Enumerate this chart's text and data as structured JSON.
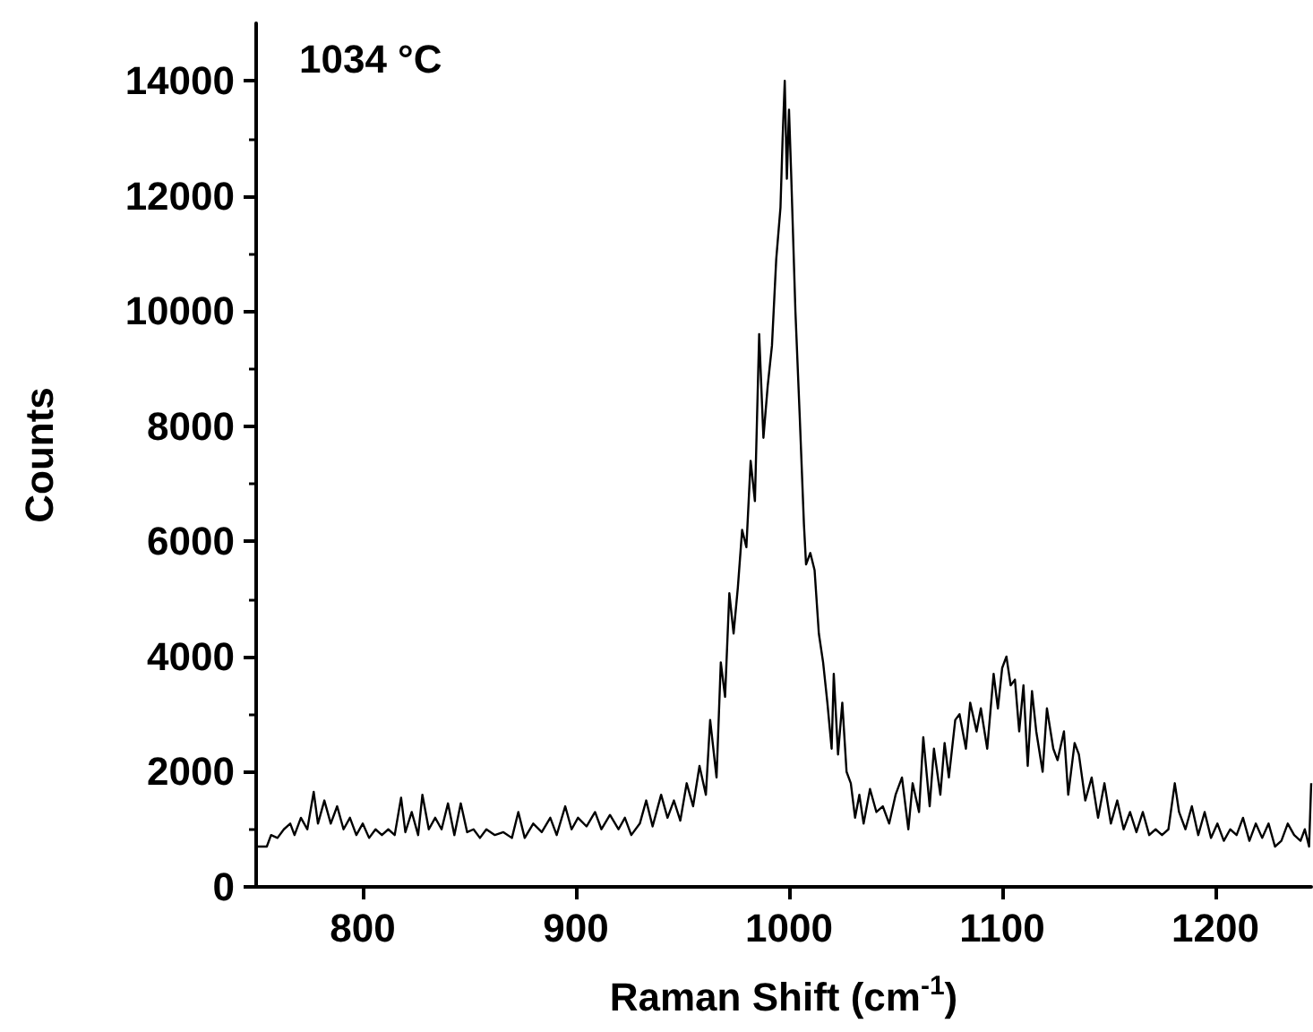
{
  "chart_data": {
    "type": "line",
    "xlabel": "Raman Shift (cm$^{-1}$)",
    "ylabel": "Counts",
    "annotations": [
      "1034 °C"
    ],
    "xlim": [
      750,
      1245
    ],
    "ylim": [
      0,
      15000
    ],
    "xticks": [
      800,
      900,
      1000,
      1100,
      1200
    ],
    "yticks": [
      0,
      2000,
      4000,
      6000,
      8000,
      10000,
      12000,
      14000
    ],
    "grid": false,
    "marker": "none",
    "line_style": "solid",
    "series": [
      {
        "color": "#000000",
        "x": [
          750,
          752,
          755,
          757,
          760,
          763,
          766,
          768,
          771,
          774,
          777,
          779,
          782,
          785,
          788,
          791,
          794,
          797,
          800,
          803,
          806,
          809,
          812,
          815,
          818,
          820,
          823,
          826,
          828,
          831,
          834,
          837,
          840,
          843,
          846,
          849,
          852,
          855,
          858,
          862,
          866,
          870,
          873,
          876,
          880,
          884,
          888,
          891,
          895,
          898,
          901,
          905,
          909,
          912,
          916,
          920,
          923,
          926,
          930,
          933,
          936,
          940,
          943,
          946,
          949,
          952,
          955,
          958,
          961,
          963,
          966,
          968,
          970,
          972,
          974,
          976,
          978,
          980,
          982,
          984,
          986,
          988,
          990,
          992,
          994,
          996,
          997,
          998,
          999,
          1000,
          1001,
          1003,
          1005,
          1007,
          1008,
          1010,
          1012,
          1014,
          1016,
          1018,
          1020,
          1021,
          1023,
          1025,
          1027,
          1029,
          1031,
          1033,
          1035,
          1038,
          1041,
          1044,
          1047,
          1050,
          1053,
          1056,
          1058,
          1061,
          1063,
          1066,
          1068,
          1071,
          1073,
          1075,
          1078,
          1080,
          1083,
          1085,
          1088,
          1090,
          1093,
          1096,
          1098,
          1100,
          1102,
          1104,
          1106,
          1108,
          1110,
          1112,
          1114,
          1116,
          1119,
          1121,
          1124,
          1126,
          1129,
          1131,
          1134,
          1136,
          1139,
          1142,
          1145,
          1148,
          1151,
          1154,
          1157,
          1160,
          1163,
          1166,
          1169,
          1172,
          1175,
          1178,
          1181,
          1183,
          1186,
          1189,
          1192,
          1195,
          1198,
          1201,
          1204,
          1207,
          1210,
          1213,
          1216,
          1219,
          1222,
          1225,
          1228,
          1231,
          1234,
          1237,
          1240,
          1242,
          1244,
          1245
        ],
        "values": [
          700,
          700,
          700,
          900,
          850,
          1000,
          1100,
          900,
          1200,
          1000,
          1650,
          1100,
          1500,
          1100,
          1400,
          1000,
          1200,
          900,
          1100,
          850,
          1000,
          900,
          1000,
          900,
          1550,
          950,
          1300,
          900,
          1600,
          1000,
          1200,
          1000,
          1450,
          900,
          1450,
          950,
          1000,
          850,
          1000,
          900,
          950,
          850,
          1300,
          850,
          1100,
          950,
          1200,
          900,
          1400,
          1000,
          1200,
          1050,
          1300,
          1000,
          1250,
          1000,
          1200,
          900,
          1100,
          1500,
          1050,
          1600,
          1200,
          1500,
          1150,
          1800,
          1400,
          2100,
          1600,
          2900,
          1900,
          3900,
          3300,
          5100,
          4400,
          5200,
          6200,
          5900,
          7400,
          6700,
          9600,
          7800,
          8700,
          9400,
          10900,
          11800,
          13000,
          14000,
          12300,
          13500,
          12400,
          10000,
          8200,
          6300,
          5600,
          5800,
          5500,
          4400,
          3900,
          3200,
          2400,
          3700,
          2300,
          3200,
          2000,
          1800,
          1200,
          1600,
          1100,
          1700,
          1300,
          1400,
          1100,
          1600,
          1900,
          1000,
          1800,
          1300,
          2600,
          1400,
          2400,
          1600,
          2500,
          1900,
          2900,
          3000,
          2400,
          3200,
          2700,
          3100,
          2400,
          3700,
          3100,
          3800,
          4000,
          3500,
          3600,
          2700,
          3500,
          2100,
          3400,
          2700,
          2000,
          3100,
          2400,
          2200,
          2700,
          1600,
          2500,
          2300,
          1500,
          1900,
          1200,
          1800,
          1100,
          1500,
          1000,
          1300,
          950,
          1300,
          900,
          1000,
          900,
          1000,
          1800,
          1300,
          1000,
          1400,
          900,
          1300,
          850,
          1100,
          800,
          1000,
          900,
          1200,
          800,
          1100,
          850,
          1100,
          700,
          800,
          1100,
          900,
          800,
          1000,
          700,
          1800
        ]
      }
    ]
  }
}
